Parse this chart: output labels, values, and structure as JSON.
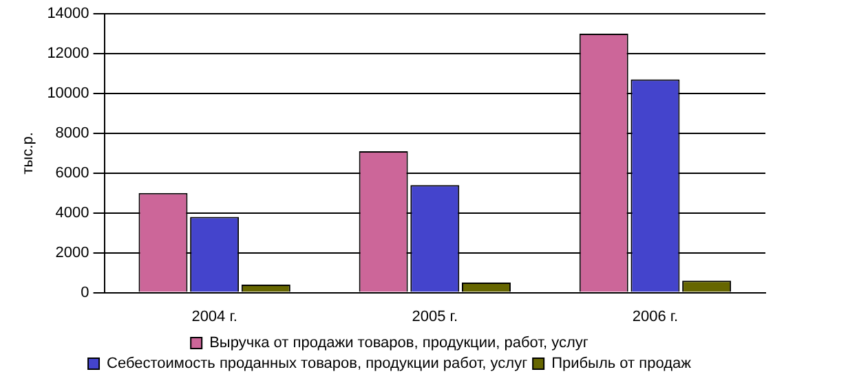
{
  "chart_data": {
    "type": "bar",
    "ylabel": "тыс.р.",
    "categories": [
      "2004 г.",
      "2005 г.",
      "2006 г."
    ],
    "series": [
      {
        "name": "Выручка от продажи товаров, продукции, работ, услуг",
        "color": "#cc6699",
        "values": [
          5000,
          7100,
          13000
        ]
      },
      {
        "name": "Себестоимость проданных товаров, продукции работ, услуг",
        "color": "#4444cc",
        "values": [
          3800,
          5400,
          10700
        ]
      },
      {
        "name": "Прибыль от продаж",
        "color": "#666600",
        "values": [
          400,
          500,
          600
        ]
      }
    ],
    "ylim": [
      0,
      14000
    ],
    "yticks": [
      0,
      2000,
      4000,
      6000,
      8000,
      10000,
      12000,
      14000
    ],
    "grid": "y",
    "legend": "bottom"
  }
}
